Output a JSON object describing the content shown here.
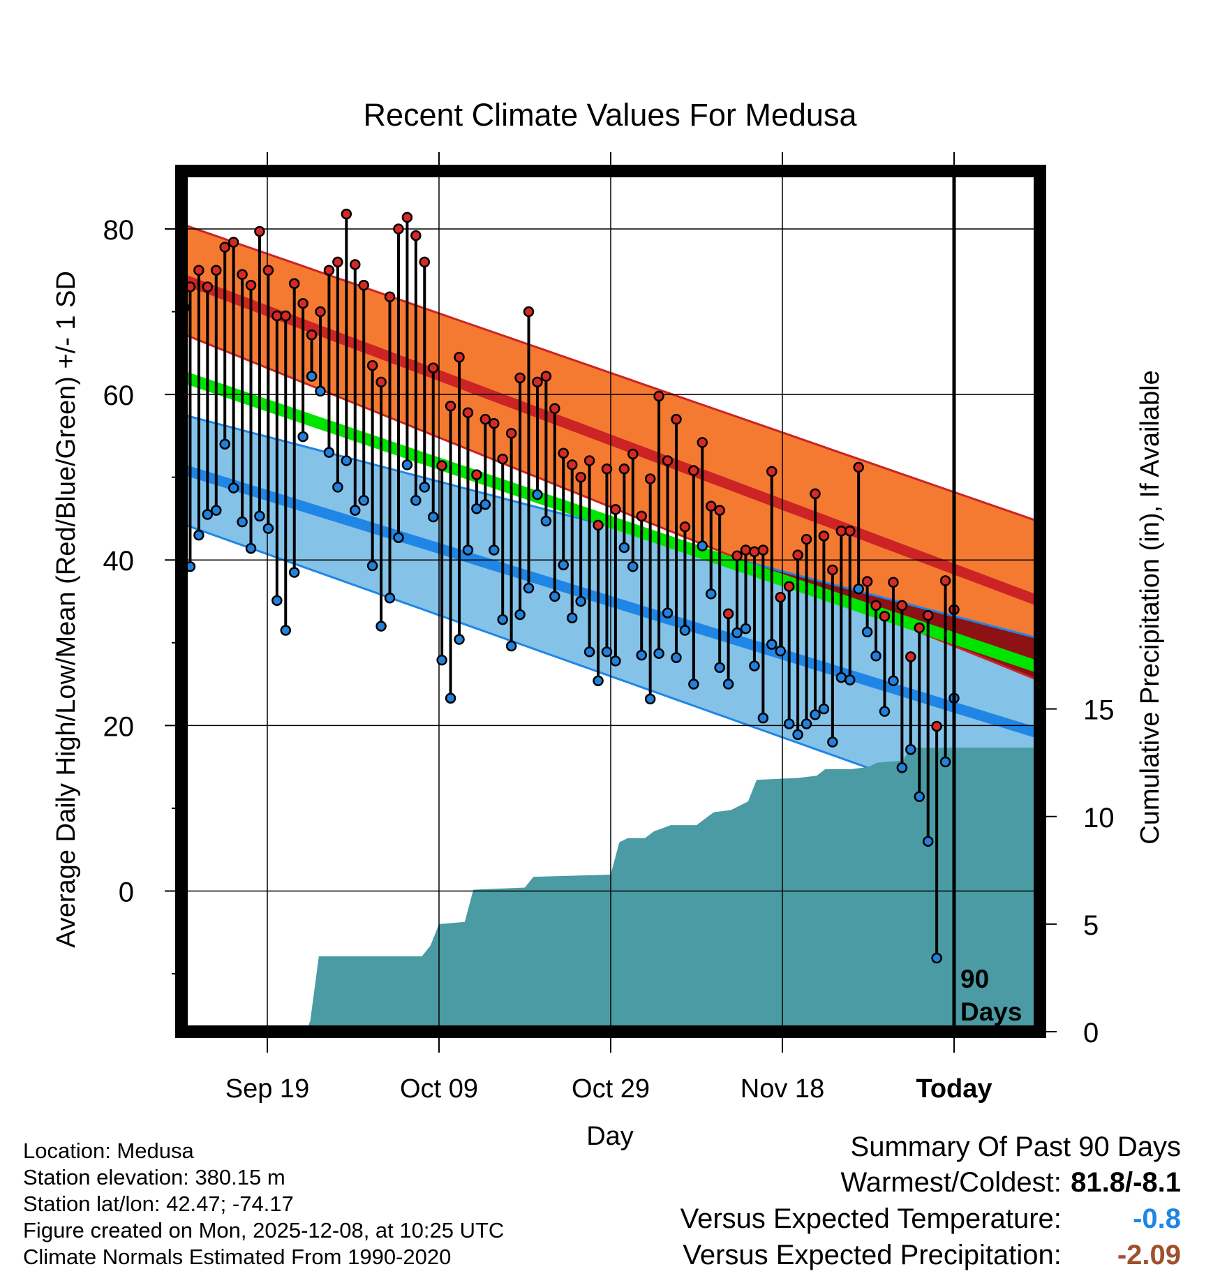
{
  "chart_data": {
    "type": "line",
    "title": "Recent Climate Values For Medusa",
    "xlabel": "Day",
    "ylabel": "Average Daily High/Low/Mean (Red/Blue/Green) +/- 1 SD",
    "y2label": "Cumulative Precipitation (in), If Available",
    "ylim": [
      -17,
      87
    ],
    "y2lim": [
      0,
      40
    ],
    "y_ticks": [
      0,
      20,
      40,
      60,
      80
    ],
    "y2_ticks": [
      0,
      5,
      10,
      15
    ],
    "xlim": [
      0,
      100
    ],
    "x_ticks": [
      {
        "day": 10,
        "label": "Sep 19"
      },
      {
        "day": 30,
        "label": "Oct 09"
      },
      {
        "day": 50,
        "label": "Oct 29"
      },
      {
        "day": 70,
        "label": "Nov 18"
      },
      {
        "day": 90,
        "label": "Today"
      }
    ],
    "today_marker": {
      "day": 90,
      "label_line1": "90",
      "label_line2": "Days"
    },
    "normals": {
      "high_mean": {
        "start": 74,
        "end": 35
      },
      "high_sd": {
        "start": 6.6,
        "end": 9.6
      },
      "low_mean": {
        "start": 51,
        "end": 19
      },
      "low_sd": {
        "start": 6.6,
        "end": 11.5
      },
      "mean": {
        "start": 62.2,
        "end": 27
      }
    },
    "highs": [
      70.5,
      73,
      75,
      73,
      75,
      77.8,
      78.4,
      74.5,
      73.2,
      79.7,
      75,
      69.5,
      69.5,
      73.4,
      71,
      67.2,
      70,
      75,
      76,
      81.8,
      75.7,
      73.2,
      63.5,
      61.5,
      71.8,
      80,
      81.4,
      79.2,
      76,
      63.2,
      51.4,
      58.6,
      64.5,
      57.8,
      50.3,
      57,
      56.5,
      52.2,
      55.3,
      62,
      70,
      61.5,
      62.2,
      58.3,
      52.9,
      51.5,
      50,
      52,
      44.2,
      51,
      46.1,
      51,
      52.8,
      45.3,
      49.8,
      59.8,
      52,
      57,
      44,
      50.8,
      54.2,
      46.5,
      46,
      33.5,
      40.5,
      41.2,
      41,
      41.2,
      50.7,
      35.5,
      36.8,
      40.6,
      42.5,
      48,
      42.9,
      38.8,
      43.5,
      43.5,
      51.2,
      37.4,
      34.5,
      33.2,
      37.3,
      34.5,
      28.3,
      31.8,
      33.3,
      19.9,
      37.5,
      34
    ],
    "lows": [
      39.2,
      39.2,
      43,
      45.5,
      46,
      54,
      48.7,
      44.6,
      41.4,
      45.3,
      43.8,
      35.1,
      31.5,
      38.5,
      54.9,
      62.2,
      60.4,
      53,
      48.8,
      52,
      46,
      47.2,
      39.3,
      32,
      35.4,
      42.7,
      51.5,
      47.2,
      48.8,
      45.2,
      27.9,
      23.3,
      30.4,
      41.2,
      46.2,
      46.7,
      41.2,
      32.8,
      29.6,
      33.4,
      36.6,
      47.9,
      44.7,
      35.6,
      39.4,
      33,
      35,
      28.9,
      25.4,
      28.9,
      27.8,
      41.5,
      39.2,
      28.5,
      23.2,
      28.7,
      33.6,
      28.2,
      31.5,
      25,
      41.7,
      35.9,
      27,
      25,
      31.2,
      31.7,
      27.2,
      20.9,
      29.8,
      29,
      20.2,
      18.9,
      20.2,
      21.3,
      22,
      18,
      25.8,
      25.5,
      36.5,
      31.3,
      28.4,
      21.7,
      25.4,
      14.9,
      17.1,
      11.4,
      6,
      -8.1,
      15.6,
      23.3
    ],
    "precip_cumulative": [
      [
        0,
        0
      ],
      [
        14.5,
        0
      ],
      [
        15,
        0.5
      ],
      [
        16,
        3.5
      ],
      [
        28,
        3.5
      ],
      [
        29,
        4
      ],
      [
        30,
        5
      ],
      [
        33,
        5.1
      ],
      [
        34,
        6.6
      ],
      [
        40,
        6.7
      ],
      [
        41,
        7.2
      ],
      [
        50,
        7.3
      ],
      [
        51,
        8.8
      ],
      [
        52,
        9
      ],
      [
        54,
        9
      ],
      [
        55,
        9.3
      ],
      [
        57,
        9.6
      ],
      [
        60,
        9.6
      ],
      [
        62,
        10.2
      ],
      [
        64,
        10.3
      ],
      [
        66,
        10.7
      ],
      [
        67,
        11.7
      ],
      [
        72,
        11.8
      ],
      [
        74,
        11.9
      ],
      [
        75,
        12.2
      ],
      [
        78,
        12.2
      ],
      [
        80,
        12.3
      ],
      [
        81,
        12.5
      ],
      [
        84,
        12.6
      ],
      [
        85,
        13.2
      ],
      [
        100,
        13.2
      ]
    ]
  },
  "info": {
    "location": "Location: Medusa",
    "elevation": "Station elevation: 380.15 m",
    "latlon": "Station lat/lon: 42.47; -74.17",
    "created": "Figure created on Mon, 2025-12-08, at 10:25 UTC",
    "normals": "Climate Normals Estimated From 1990-2020"
  },
  "summary": {
    "heading": "Summary Of Past 90 Days",
    "warmest_label": "Warmest/Coldest:",
    "warmest_value": "81.8/-8.1",
    "temp_label": "Versus Expected Temperature:",
    "temp_value": "-0.8",
    "precip_label": "Versus Expected Precipitation:",
    "precip_value": "-2.09"
  },
  "colors": {
    "high_band": "#f47a32",
    "high_line": "#cc2424",
    "low_band": "#85c2e8",
    "low_line": "#1f86e6",
    "mean_line": "#00e400",
    "overlap_band": "#8e1214",
    "precip_fill": "#4a9ba4",
    "high_dot": "#d62a24",
    "low_dot": "#2381dc",
    "temp_value": "#1f86e6",
    "precip_value": "#a0502d"
  }
}
